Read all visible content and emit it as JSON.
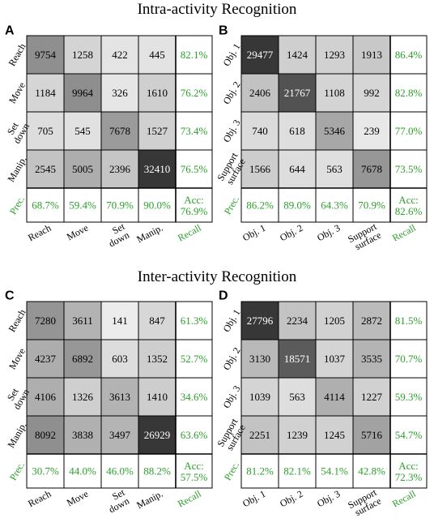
{
  "sections": [
    {
      "title": "Intra-activity Recognition"
    },
    {
      "title": "Inter-activity Recognition"
    }
  ],
  "colors": {
    "green": "#2ca02c",
    "grid": "#000000"
  },
  "chart_data": [
    {
      "type": "heatmap",
      "panel_label": "A",
      "row_labels": [
        "Reach",
        "Move",
        "Set\ndown",
        "Manip."
      ],
      "col_labels": [
        "Reach",
        "Move",
        "Set\ndown",
        "Manip."
      ],
      "values": [
        [
          9754,
          1258,
          422,
          445
        ],
        [
          1184,
          9964,
          326,
          1610
        ],
        [
          705,
          545,
          7678,
          1527
        ],
        [
          2545,
          5005,
          2396,
          32410
        ]
      ],
      "recall": [
        "82.1%",
        "76.2%",
        "73.4%",
        "76.5%"
      ],
      "precision": [
        "68.7%",
        "59.4%",
        "70.9%",
        "90.0%"
      ],
      "prec_label": "Prec.",
      "recall_label": "Recall",
      "acc": [
        "Acc:",
        "76.9%"
      ]
    },
    {
      "type": "heatmap",
      "panel_label": "B",
      "row_labels": [
        "Obj. 1",
        "Obj. 2",
        "Obj. 3",
        "Support\nsurface"
      ],
      "col_labels": [
        "Obj. 1",
        "Obj. 2",
        "Obj. 3",
        "Support\nsurface"
      ],
      "values": [
        [
          29477,
          1424,
          1293,
          1913
        ],
        [
          2406,
          21767,
          1108,
          992
        ],
        [
          740,
          618,
          5346,
          239
        ],
        [
          1566,
          644,
          563,
          7678
        ]
      ],
      "recall": [
        "86.4%",
        "82.8%",
        "77.0%",
        "73.5%"
      ],
      "precision": [
        "86.2%",
        "89.0%",
        "64.3%",
        "70.9%"
      ],
      "prec_label": "Prec.",
      "recall_label": "Recall",
      "acc": [
        "Acc:",
        "82.6%"
      ]
    },
    {
      "type": "heatmap",
      "panel_label": "C",
      "row_labels": [
        "Reach",
        "Move",
        "Set\ndown",
        "Manip."
      ],
      "col_labels": [
        "Reach",
        "Move",
        "Set\ndown",
        "Manip."
      ],
      "values": [
        [
          7280,
          3611,
          141,
          847
        ],
        [
          4237,
          6892,
          603,
          1352
        ],
        [
          4106,
          1326,
          3613,
          1410
        ],
        [
          8092,
          3838,
          3497,
          26929
        ]
      ],
      "recall": [
        "61.3%",
        "52.7%",
        "34.6%",
        "63.6%"
      ],
      "precision": [
        "30.7%",
        "44.0%",
        "46.0%",
        "88.2%"
      ],
      "prec_label": "Prec.",
      "recall_label": "Recall",
      "acc": [
        "Acc:",
        "57.5%"
      ]
    },
    {
      "type": "heatmap",
      "panel_label": "D",
      "row_labels": [
        "Obj. 1",
        "Obj. 2",
        "Obj. 3",
        "Support\nsurface"
      ],
      "col_labels": [
        "Obj. 1",
        "Obj. 2",
        "Obj. 3",
        "Support\nsurface"
      ],
      "values": [
        [
          27796,
          2234,
          1205,
          2872
        ],
        [
          3130,
          18571,
          1037,
          3535
        ],
        [
          1039,
          563,
          4114,
          1227
        ],
        [
          2251,
          1239,
          1245,
          5716
        ]
      ],
      "recall": [
        "81.5%",
        "70.7%",
        "59.3%",
        "54.7%"
      ],
      "precision": [
        "81.2%",
        "82.1%",
        "54.1%",
        "42.8%"
      ],
      "prec_label": "Prec.",
      "recall_label": "Recall",
      "acc": [
        "Acc:",
        "72.3%"
      ]
    }
  ]
}
